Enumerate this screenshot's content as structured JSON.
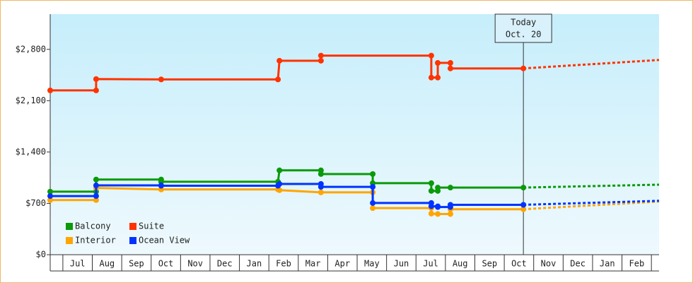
{
  "chart_data": {
    "type": "line",
    "xlim": [
      0.57,
      21.26
    ],
    "xticks": [
      {
        "value": 1.5,
        "label": "Jul"
      },
      {
        "value": 2.5,
        "label": "Aug"
      },
      {
        "value": 3.5,
        "label": "Sep"
      },
      {
        "value": 4.5,
        "label": "Oct"
      },
      {
        "value": 5.5,
        "label": "Nov"
      },
      {
        "value": 6.5,
        "label": "Dec"
      },
      {
        "value": 7.5,
        "label": "Jan"
      },
      {
        "value": 8.5,
        "label": "Feb"
      },
      {
        "value": 9.5,
        "label": "Mar"
      },
      {
        "value": 10.5,
        "label": "Apr"
      },
      {
        "value": 11.5,
        "label": "May"
      },
      {
        "value": 12.5,
        "label": "Jun"
      },
      {
        "value": 13.5,
        "label": "Jul"
      },
      {
        "value": 14.5,
        "label": "Aug"
      },
      {
        "value": 15.5,
        "label": "Sep"
      },
      {
        "value": 16.5,
        "label": "Oct"
      },
      {
        "value": 17.5,
        "label": "Nov"
      },
      {
        "value": 18.5,
        "label": "Dec"
      },
      {
        "value": 19.5,
        "label": "Jan"
      },
      {
        "value": 20.5,
        "label": "Feb"
      }
    ],
    "ylim": [
      0,
      3280
    ],
    "yticks": [
      {
        "value": 0,
        "label": "$0"
      },
      {
        "value": 700,
        "label": "$700"
      },
      {
        "value": 1400,
        "label": "$1,400"
      },
      {
        "value": 2100,
        "label": "$2,100"
      },
      {
        "value": 2800,
        "label": "$2,800"
      }
    ],
    "annotation": {
      "x": 16.65,
      "lines": [
        "Today",
        "Oct. 20"
      ]
    },
    "forecast_x": [
      16.65,
      21.26
    ],
    "series": [
      {
        "name": "Balcony",
        "color": "#0a9a0a",
        "x": [
          0.57,
          2.13,
          2.13,
          4.34,
          4.34,
          8.31,
          8.36,
          9.77,
          9.77,
          11.53,
          11.53,
          13.52,
          13.52,
          13.74,
          13.74,
          14.17,
          16.65
        ],
        "values": [
          860,
          860,
          1025,
          1025,
          995,
          995,
          1150,
          1150,
          1100,
          1100,
          975,
          975,
          870,
          870,
          915,
          915,
          915
        ],
        "forecast_values": [
          915,
          955
        ]
      },
      {
        "name": "Suite",
        "color": "#ff3300",
        "x": [
          0.57,
          2.13,
          2.13,
          4.34,
          8.31,
          8.36,
          9.77,
          9.77,
          13.52,
          13.52,
          13.74,
          13.74,
          14.17,
          14.17,
          16.65
        ],
        "values": [
          2240,
          2240,
          2395,
          2390,
          2390,
          2645,
          2645,
          2715,
          2715,
          2415,
          2415,
          2615,
          2615,
          2540,
          2540
        ],
        "forecast_values": [
          2540,
          2655
        ]
      },
      {
        "name": "Interior",
        "color": "#ffa500",
        "x": [
          0.57,
          2.13,
          2.13,
          4.34,
          8.31,
          8.36,
          9.77,
          11.53,
          11.53,
          13.52,
          13.52,
          13.74,
          14.17,
          14.17,
          16.65
        ],
        "values": [
          745,
          745,
          910,
          890,
          890,
          880,
          850,
          850,
          635,
          635,
          560,
          555,
          555,
          620,
          620
        ],
        "forecast_values": [
          620,
          725
        ]
      },
      {
        "name": "Ocean View",
        "color": "#0033ff",
        "x": [
          0.57,
          2.13,
          2.13,
          4.34,
          4.34,
          8.31,
          8.36,
          9.77,
          9.77,
          11.53,
          11.53,
          13.52,
          13.52,
          13.74,
          13.74,
          14.17,
          14.17,
          16.65
        ],
        "values": [
          800,
          800,
          945,
          945,
          940,
          940,
          965,
          965,
          925,
          925,
          705,
          705,
          660,
          660,
          650,
          650,
          680,
          680
        ],
        "forecast_values": [
          680,
          735
        ]
      }
    ]
  }
}
